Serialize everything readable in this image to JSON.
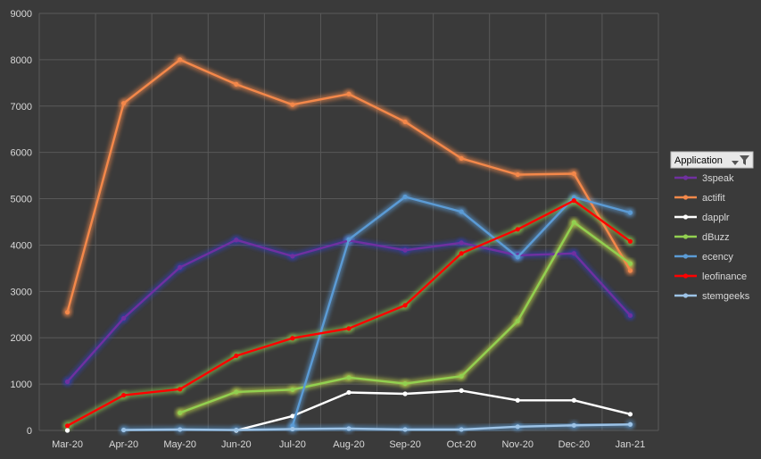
{
  "chart_data": {
    "type": "line",
    "categories": [
      "Mar-20",
      "Apr-20",
      "May-20",
      "Jun-20",
      "Jul-20",
      "Aug-20",
      "Sep-20",
      "Oct-20",
      "Nov-20",
      "Dec-20",
      "Jan-21"
    ],
    "y_ticks": [
      "0",
      "1000",
      "2000",
      "3000",
      "4000",
      "5000",
      "6000",
      "7000",
      "8000",
      "9000"
    ],
    "ylim": [
      0,
      9000
    ],
    "grid": true,
    "legend_title": "Application",
    "legend_position": "right",
    "series": [
      {
        "name": "3speak",
        "color": "#7030a0",
        "glow": "#2f3fbf",
        "values": [
          1050,
          2420,
          3520,
          4110,
          3760,
          4100,
          3890,
          4050,
          3780,
          3820,
          2480
        ]
      },
      {
        "name": "actifit",
        "color": "#f4884a",
        "glow": "#f4884a",
        "values": [
          2550,
          7060,
          8000,
          7470,
          7030,
          7260,
          6660,
          5870,
          5520,
          5540,
          3450
        ]
      },
      {
        "name": "dapplr",
        "color": "#ffffff",
        "glow": null,
        "values": [
          0,
          null,
          null,
          0,
          310,
          820,
          790,
          860,
          650,
          650,
          350
        ]
      },
      {
        "name": "dBuzz",
        "color": "#92d050",
        "glow": "#c8e04a",
        "values": [
          null,
          null,
          380,
          830,
          880,
          1140,
          1010,
          1170,
          2360,
          4490,
          3600
        ]
      },
      {
        "name": "ecency",
        "color": "#5b9bd5",
        "glow": "#5b9bd5",
        "values": [
          null,
          null,
          null,
          null,
          100,
          4120,
          5040,
          4720,
          3740,
          5030,
          4700
        ]
      },
      {
        "name": "leofinance",
        "color": "#ff0000",
        "glow": "#92d050",
        "values": [
          100,
          760,
          890,
          1610,
          1990,
          2200,
          2700,
          3820,
          4340,
          4960,
          4080
        ]
      },
      {
        "name": "stemgeeks",
        "color": "#9dc3e6",
        "glow": "#5b9bd5",
        "values": [
          null,
          10,
          20,
          10,
          30,
          40,
          20,
          20,
          80,
          110,
          130
        ]
      }
    ]
  }
}
